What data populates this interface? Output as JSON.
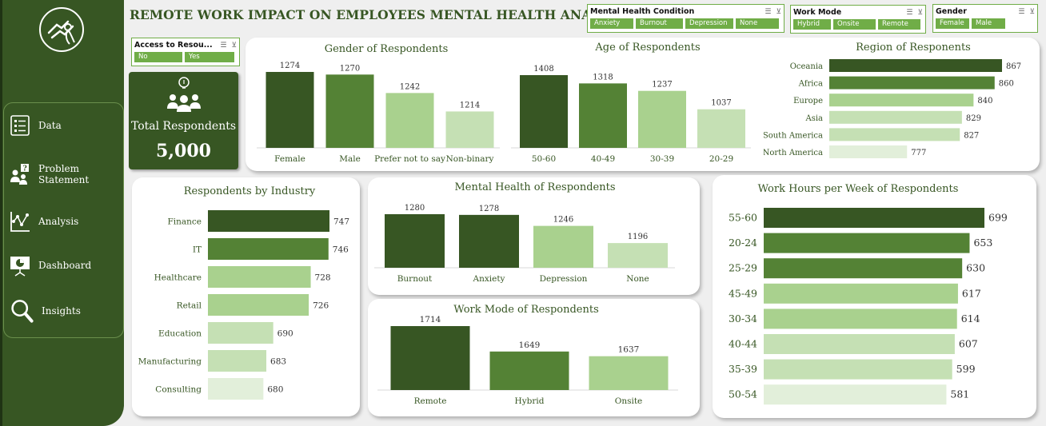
{
  "title": "REMOTE WORK IMPACT ON EMPLOYEES MENTAL HEALTH ANALYSIS",
  "colors": {
    "dark": "#375623",
    "mid": "#548235",
    "light": "#a9d18e",
    "lighter": "#c5e0b4",
    "lightest": "#e2efda",
    "text": "#375623"
  },
  "sidebar": {
    "logo_icon": "hands-ribbon-icon",
    "items": [
      {
        "label": "Data",
        "icon": "list-icon"
      },
      {
        "label": "Problem Statement",
        "icon": "question-people-icon"
      },
      {
        "label": "Analysis",
        "icon": "scatter-chart-icon"
      },
      {
        "label": "Dashboard",
        "icon": "presentation-icon"
      },
      {
        "label": "Insights",
        "icon": "magnifier-icon"
      }
    ]
  },
  "slicers": {
    "access": {
      "title": "Access to Resou...",
      "options": [
        "No",
        "Yes"
      ]
    },
    "condition": {
      "title": "Mental Health Condition",
      "options": [
        "Anxiety",
        "Burnout",
        "Depression",
        "None"
      ]
    },
    "work_mode": {
      "title": "Work Mode",
      "options": [
        "Hybrid",
        "Onsite",
        "Remote"
      ]
    },
    "gender": {
      "title": "Gender",
      "options": [
        "Female",
        "Male"
      ]
    }
  },
  "kpi": {
    "label": "Total Respondents",
    "value": "5,000"
  },
  "chart_data": [
    {
      "id": "gender",
      "type": "bar",
      "title": "Gender of Respondents",
      "categories": [
        "Female",
        "Male",
        "Prefer not to say",
        "Non-binary"
      ],
      "values": [
        1274,
        1270,
        1242,
        1214
      ]
    },
    {
      "id": "age",
      "type": "bar",
      "title": "Age of Respondents",
      "categories": [
        "50-60",
        "40-49",
        "30-39",
        "20-29"
      ],
      "values": [
        1408,
        1318,
        1237,
        1037
      ]
    },
    {
      "id": "region",
      "type": "bar",
      "orientation": "horizontal",
      "title": "Region of Responents",
      "categories": [
        "Oceania",
        "Africa",
        "Europe",
        "Asia",
        "South America",
        "North America"
      ],
      "values": [
        867,
        860,
        840,
        829,
        827,
        777
      ]
    },
    {
      "id": "industry",
      "type": "bar",
      "orientation": "horizontal",
      "title": "Respondents by Industry",
      "categories": [
        "Finance",
        "IT",
        "Healthcare",
        "Retail",
        "Education",
        "Manufacturing",
        "Consulting"
      ],
      "values": [
        747,
        746,
        728,
        726,
        690,
        683,
        680
      ]
    },
    {
      "id": "mental",
      "type": "bar",
      "title": "Mental Health of Respondents",
      "categories": [
        "Burnout",
        "Anxiety",
        "Depression",
        "None"
      ],
      "values": [
        1280,
        1278,
        1246,
        1196
      ]
    },
    {
      "id": "workmode",
      "type": "bar",
      "title": "Work Mode of Respondents",
      "categories": [
        "Remote",
        "Hybrid",
        "Onsite"
      ],
      "values": [
        1714,
        1649,
        1637
      ]
    },
    {
      "id": "hours",
      "type": "bar",
      "orientation": "horizontal",
      "title": "Work Hours per Week of Respondents",
      "categories": [
        "55-60",
        "20-24",
        "25-29",
        "45-49",
        "30-34",
        "40-44",
        "35-39",
        "50-54"
      ],
      "values": [
        699,
        653,
        630,
        617,
        614,
        607,
        599,
        581
      ]
    }
  ]
}
